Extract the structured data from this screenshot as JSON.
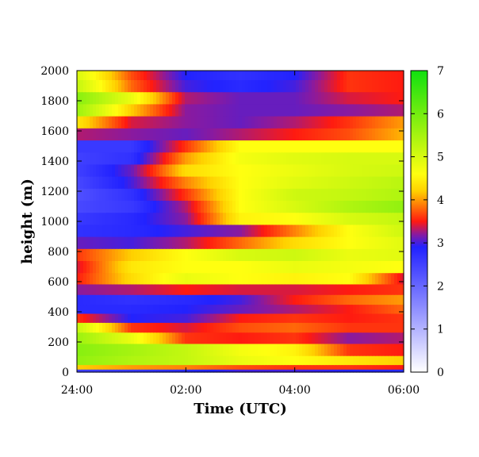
{
  "chart_data": {
    "type": "heatmap",
    "title": "",
    "xlabel": "Time (UTC)",
    "ylabel": "height (m)",
    "x_ticks": [
      "24:00",
      "02:00",
      "04:00",
      "06:00"
    ],
    "x_range_hours": [
      0,
      6
    ],
    "y_ticks": [
      "0",
      "200",
      "400",
      "600",
      "800",
      "1000",
      "1200",
      "1400",
      "1600",
      "1800",
      "2000"
    ],
    "ylim": [
      0,
      2000
    ],
    "colorbar": {
      "range": [
        0,
        7
      ],
      "ticks": [
        "0",
        "1",
        "2",
        "3",
        "4",
        "5",
        "6",
        "7"
      ],
      "stops": [
        {
          "value": 0.0,
          "color": "#ffffff"
        },
        {
          "value": 2.9,
          "color": "#2222ff"
        },
        {
          "value": 3.2,
          "color": "#8a1a9e"
        },
        {
          "value": 3.5,
          "color": "#ff1a10"
        },
        {
          "value": 4.2,
          "color": "#ffd000"
        },
        {
          "value": 4.6,
          "color": "#ffff10"
        },
        {
          "value": 7.0,
          "color": "#10e010"
        }
      ]
    },
    "hours": [
      0,
      1,
      2,
      3,
      4,
      5,
      6
    ],
    "layers": [
      {
        "height_m": 10,
        "values": [
          2.5,
          2.6,
          2.8,
          3.0,
          3.0,
          2.9,
          2.8
        ]
      },
      {
        "height_m": 30,
        "values": [
          4.2,
          4.0,
          3.9,
          3.7,
          3.6,
          3.6,
          3.5
        ]
      },
      {
        "height_m": 70,
        "values": [
          5.7,
          5.4,
          5.2,
          4.8,
          4.6,
          4.4,
          4.2
        ]
      },
      {
        "height_m": 150,
        "values": [
          5.8,
          5.5,
          5.2,
          4.7,
          4.5,
          3.6,
          3.5
        ]
      },
      {
        "height_m": 230,
        "values": [
          5.6,
          4.8,
          3.6,
          3.5,
          3.6,
          3.2,
          3.3
        ]
      },
      {
        "height_m": 300,
        "values": [
          5.2,
          3.6,
          3.4,
          3.7,
          3.8,
          3.6,
          3.6
        ]
      },
      {
        "height_m": 360,
        "values": [
          3.6,
          2.9,
          3.0,
          3.5,
          3.6,
          3.5,
          3.6
        ]
      },
      {
        "height_m": 420,
        "values": [
          2.8,
          2.8,
          2.9,
          3.1,
          3.3,
          3.5,
          3.8
        ]
      },
      {
        "height_m": 480,
        "values": [
          2.8,
          2.7,
          2.8,
          3.0,
          3.5,
          3.8,
          4.0
        ]
      },
      {
        "height_m": 550,
        "values": [
          3.2,
          3.3,
          3.5,
          3.4,
          3.4,
          3.5,
          3.6
        ]
      },
      {
        "height_m": 620,
        "values": [
          3.5,
          4.3,
          4.8,
          4.6,
          4.5,
          4.6,
          3.4
        ]
      },
      {
        "height_m": 700,
        "values": [
          3.4,
          4.4,
          4.6,
          4.6,
          4.8,
          4.7,
          4.6
        ]
      },
      {
        "height_m": 780,
        "values": [
          3.6,
          4.2,
          4.6,
          5.0,
          5.1,
          4.8,
          4.9
        ]
      },
      {
        "height_m": 860,
        "values": [
          3.1,
          3.0,
          3.3,
          3.8,
          4.3,
          4.6,
          4.9
        ]
      },
      {
        "height_m": 940,
        "values": [
          2.7,
          2.8,
          3.0,
          3.2,
          3.9,
          4.6,
          5.1
        ]
      },
      {
        "height_m": 1020,
        "values": [
          2.6,
          2.8,
          3.2,
          4.5,
          4.6,
          5.0,
          5.2
        ]
      },
      {
        "height_m": 1100,
        "values": [
          2.4,
          2.6,
          3.3,
          4.6,
          5.0,
          5.4,
          5.7
        ]
      },
      {
        "height_m": 1180,
        "values": [
          2.3,
          2.7,
          3.6,
          4.6,
          5.1,
          5.2,
          5.4
        ]
      },
      {
        "height_m": 1260,
        "values": [
          2.4,
          3.0,
          3.9,
          4.6,
          4.9,
          5.1,
          5.3
        ]
      },
      {
        "height_m": 1340,
        "values": [
          2.5,
          3.1,
          4.3,
          4.6,
          4.8,
          5.0,
          5.1
        ]
      },
      {
        "height_m": 1420,
        "values": [
          2.5,
          2.7,
          4.0,
          4.7,
          4.9,
          5.0,
          5.0
        ]
      },
      {
        "height_m": 1500,
        "values": [
          2.6,
          2.6,
          3.6,
          4.6,
          4.6,
          4.6,
          4.6
        ]
      },
      {
        "height_m": 1580,
        "values": [
          3.3,
          3.2,
          3.1,
          3.3,
          3.5,
          3.7,
          4.1
        ]
      },
      {
        "height_m": 1660,
        "values": [
          4.4,
          3.4,
          3.2,
          3.1,
          3.3,
          3.6,
          4.0
        ]
      },
      {
        "height_m": 1740,
        "values": [
          5.6,
          4.2,
          3.2,
          3.1,
          3.1,
          3.2,
          3.3
        ]
      },
      {
        "height_m": 1820,
        "values": [
          5.8,
          4.8,
          3.3,
          3.1,
          3.1,
          3.4,
          3.5
        ]
      },
      {
        "height_m": 1900,
        "values": [
          5.2,
          3.8,
          3.0,
          2.8,
          3.0,
          3.6,
          3.5
        ]
      },
      {
        "height_m": 1980,
        "values": [
          5.0,
          3.7,
          2.9,
          2.7,
          2.9,
          3.6,
          3.5
        ]
      }
    ]
  }
}
